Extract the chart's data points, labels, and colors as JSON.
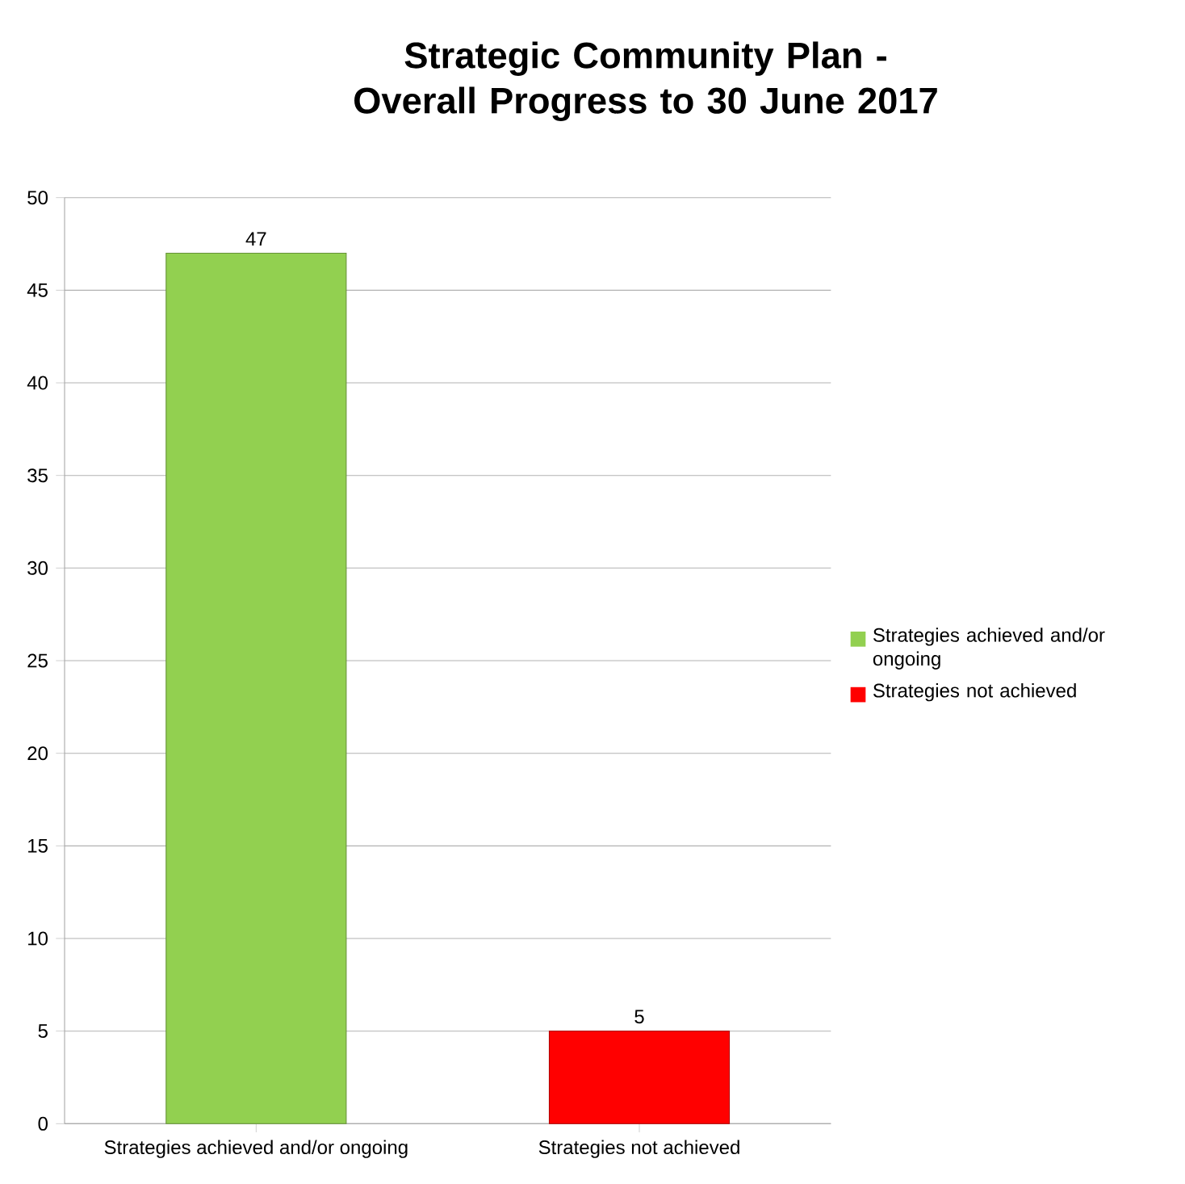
{
  "chart_data": {
    "type": "bar",
    "title": "Strategic Community Plan - Overall Progress to 30 June 2017",
    "categories": [
      "Strategies achieved and/or ongoing",
      "Strategies not achieved"
    ],
    "series": [
      {
        "name": "Strategies achieved and/or ongoing",
        "color": "#92d050",
        "values": [
          47,
          null
        ]
      },
      {
        "name": "Strategies not achieved",
        "color": "#ff0000",
        "values": [
          null,
          5
        ]
      }
    ],
    "ylim": [
      0,
      50
    ],
    "yticks": [
      0,
      5,
      10,
      15,
      20,
      25,
      30,
      35,
      40,
      45,
      50
    ],
    "grid": "y",
    "legend": "right",
    "data_labels": true
  }
}
